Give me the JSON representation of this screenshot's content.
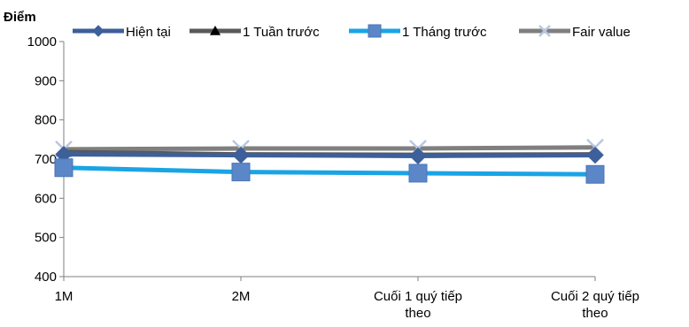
{
  "chart_data": {
    "type": "line",
    "title": "",
    "ylabel": "Điểm",
    "xlabel": "",
    "ylim": [
      400,
      1000
    ],
    "yticks": [
      400,
      500,
      600,
      700,
      800,
      900,
      1000
    ],
    "grid": false,
    "legend_position": "top",
    "categories": [
      "1M",
      "2M",
      "Cuối 1 quý tiếp theo",
      "Cuối 2 quý tiếp theo"
    ],
    "category_lines": [
      [
        "1M"
      ],
      [
        "2M"
      ],
      [
        "Cuối 1 quý tiếp",
        "theo"
      ],
      [
        "Cuối 2 quý tiếp",
        "theo"
      ]
    ],
    "series": [
      {
        "name": "Fair value",
        "values": [
          725,
          727,
          727,
          730
        ],
        "color": "#7f7f7f",
        "marker": "x-icon"
      },
      {
        "name": "1 Tuần trước",
        "values": [
          718,
          712,
          711,
          712
        ],
        "color": "#595959",
        "marker": "triangle-icon"
      },
      {
        "name": "Hiện tại",
        "values": [
          712,
          710,
          708,
          710
        ],
        "color": "#3d5f9a",
        "marker": "diamond-icon"
      },
      {
        "name": "1 Tháng trước",
        "values": [
          678,
          667,
          664,
          661
        ],
        "color": "#19a4e6",
        "marker": "square-icon"
      }
    ],
    "legend_order": [
      "Hiện tại",
      "1 Tuần trước",
      "1 Tháng trước",
      "Fair value"
    ]
  }
}
